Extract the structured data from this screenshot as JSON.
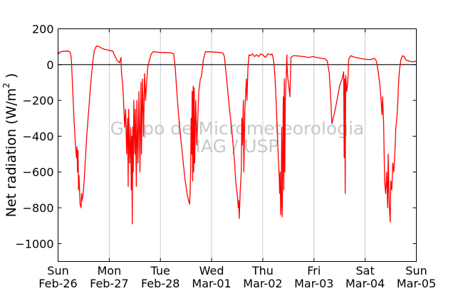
{
  "chart_data": {
    "type": "line",
    "ylabel_main": "Net radiation (W/m",
    "ylabel_sup": "2",
    "ylabel_close": " )",
    "ylim": [
      -1100,
      200
    ],
    "yticks": [
      200,
      0,
      -200,
      -400,
      -600,
      -800,
      -1000
    ],
    "ytick_labels": [
      "200",
      "0",
      "−200",
      "−400",
      "−600",
      "−800",
      "−1000"
    ],
    "xlim": [
      0,
      7
    ],
    "xticks": [
      {
        "day": "Sun",
        "date": "Feb-26"
      },
      {
        "day": "Mon",
        "date": "Feb-27"
      },
      {
        "day": "Tue",
        "date": "Feb-28"
      },
      {
        "day": "Wed",
        "date": "Mar-01"
      },
      {
        "day": "Thu",
        "date": "Mar-02"
      },
      {
        "day": "Fri",
        "date": "Mar-03"
      },
      {
        "day": "Sat",
        "date": "Mar-04"
      },
      {
        "day": "Sun",
        "date": "Mar-05"
      }
    ],
    "grid": "vertical",
    "zero_line": true,
    "watermark": [
      "Grupo de Micrometeorologia",
      "IAG / USP"
    ],
    "series": [
      {
        "color": "#ff0000",
        "points": [
          [
            0.0,
            75
          ],
          [
            0.01,
            60
          ],
          [
            0.03,
            68
          ],
          [
            0.06,
            72
          ],
          [
            0.12,
            75
          ],
          [
            0.2,
            76
          ],
          [
            0.24,
            68
          ],
          [
            0.26,
            30
          ],
          [
            0.28,
            -100
          ],
          [
            0.31,
            -300
          ],
          [
            0.34,
            -450
          ],
          [
            0.36,
            -520
          ],
          [
            0.37,
            -460
          ],
          [
            0.38,
            -600
          ],
          [
            0.39,
            -480
          ],
          [
            0.4,
            -700
          ],
          [
            0.41,
            -620
          ],
          [
            0.43,
            -780
          ],
          [
            0.45,
            -800
          ],
          [
            0.46,
            -720
          ],
          [
            0.47,
            -760
          ],
          [
            0.49,
            -720
          ],
          [
            0.51,
            -650
          ],
          [
            0.53,
            -550
          ],
          [
            0.56,
            -400
          ],
          [
            0.6,
            -250
          ],
          [
            0.64,
            -100
          ],
          [
            0.68,
            20
          ],
          [
            0.71,
            80
          ],
          [
            0.75,
            104
          ],
          [
            0.8,
            100
          ],
          [
            0.88,
            88
          ],
          [
            0.96,
            82
          ],
          [
            1.02,
            78
          ],
          [
            1.07,
            75
          ],
          [
            1.1,
            55
          ],
          [
            1.15,
            25
          ],
          [
            1.2,
            10
          ],
          [
            1.23,
            40
          ],
          [
            1.24,
            -50
          ],
          [
            1.26,
            -100
          ],
          [
            1.28,
            -200
          ],
          [
            1.3,
            -350
          ],
          [
            1.32,
            -250
          ],
          [
            1.34,
            -500
          ],
          [
            1.36,
            -300
          ],
          [
            1.37,
            -680
          ],
          [
            1.38,
            -250
          ],
          [
            1.4,
            -550
          ],
          [
            1.42,
            -350
          ],
          [
            1.43,
            -700
          ],
          [
            1.44,
            -400
          ],
          [
            1.45,
            -890
          ],
          [
            1.46,
            -350
          ],
          [
            1.47,
            -600
          ],
          [
            1.48,
            -200
          ],
          [
            1.5,
            -500
          ],
          [
            1.51,
            -250
          ],
          [
            1.53,
            -680
          ],
          [
            1.54,
            -200
          ],
          [
            1.56,
            -550
          ],
          [
            1.58,
            -150
          ],
          [
            1.6,
            -600
          ],
          [
            1.62,
            -100
          ],
          [
            1.63,
            -500
          ],
          [
            1.65,
            -80
          ],
          [
            1.67,
            -400
          ],
          [
            1.69,
            -50
          ],
          [
            1.71,
            -200
          ],
          [
            1.73,
            -100
          ],
          [
            1.75,
            -20
          ],
          [
            1.78,
            20
          ],
          [
            1.82,
            60
          ],
          [
            1.86,
            72
          ],
          [
            1.92,
            70
          ],
          [
            2.0,
            68
          ],
          [
            2.1,
            67
          ],
          [
            2.2,
            66
          ],
          [
            2.26,
            60
          ],
          [
            2.29,
            -20
          ],
          [
            2.32,
            -150
          ],
          [
            2.36,
            -300
          ],
          [
            2.4,
            -420
          ],
          [
            2.44,
            -530
          ],
          [
            2.48,
            -640
          ],
          [
            2.52,
            -720
          ],
          [
            2.55,
            -760
          ],
          [
            2.57,
            -780
          ],
          [
            2.58,
            -720
          ],
          [
            2.59,
            -600
          ],
          [
            2.6,
            -300
          ],
          [
            2.61,
            -500
          ],
          [
            2.62,
            -150
          ],
          [
            2.63,
            -650
          ],
          [
            2.64,
            -120
          ],
          [
            2.65,
            -600
          ],
          [
            2.66,
            -130
          ],
          [
            2.67,
            -550
          ],
          [
            2.69,
            -200
          ],
          [
            2.71,
            -450
          ],
          [
            2.73,
            -300
          ],
          [
            2.75,
            -150
          ],
          [
            2.78,
            -80
          ],
          [
            2.8,
            -70
          ],
          [
            2.84,
            30
          ],
          [
            2.88,
            72
          ],
          [
            2.95,
            72
          ],
          [
            3.05,
            70
          ],
          [
            3.15,
            68
          ],
          [
            3.22,
            65
          ],
          [
            3.25,
            45
          ],
          [
            3.3,
            -100
          ],
          [
            3.35,
            -250
          ],
          [
            3.39,
            -350
          ],
          [
            3.42,
            -450
          ],
          [
            3.45,
            -550
          ],
          [
            3.47,
            -650
          ],
          [
            3.49,
            -700
          ],
          [
            3.51,
            -750
          ],
          [
            3.52,
            -800
          ],
          [
            3.53,
            -760
          ],
          [
            3.54,
            -860
          ],
          [
            3.55,
            -780
          ],
          [
            3.56,
            -700
          ],
          [
            3.58,
            -600
          ],
          [
            3.59,
            -300
          ],
          [
            3.6,
            -450
          ],
          [
            3.62,
            -200
          ],
          [
            3.63,
            -600
          ],
          [
            3.65,
            -250
          ],
          [
            3.68,
            -80
          ],
          [
            3.69,
            -200
          ],
          [
            3.71,
            -20
          ],
          [
            3.73,
            55
          ],
          [
            3.76,
            50
          ],
          [
            3.8,
            60
          ],
          [
            3.84,
            45
          ],
          [
            3.88,
            55
          ],
          [
            3.92,
            45
          ],
          [
            3.96,
            60
          ],
          [
            4.0,
            55
          ],
          [
            4.05,
            40
          ],
          [
            4.1,
            60
          ],
          [
            4.16,
            55
          ],
          [
            4.18,
            60
          ],
          [
            4.2,
            40
          ],
          [
            4.22,
            0
          ],
          [
            4.24,
            -80
          ],
          [
            4.26,
            -200
          ],
          [
            4.28,
            -350
          ],
          [
            4.3,
            -500
          ],
          [
            4.32,
            -620
          ],
          [
            4.33,
            -720
          ],
          [
            4.34,
            -600
          ],
          [
            4.35,
            -840
          ],
          [
            4.36,
            -780
          ],
          [
            4.37,
            -350
          ],
          [
            4.38,
            -850
          ],
          [
            4.39,
            -500
          ],
          [
            4.4,
            -180
          ],
          [
            4.41,
            -700
          ],
          [
            4.42,
            -80
          ],
          [
            4.43,
            -600
          ],
          [
            4.44,
            -200
          ],
          [
            4.46,
            -50
          ],
          [
            4.47,
            55
          ],
          [
            4.48,
            -50
          ],
          [
            4.5,
            -100
          ],
          [
            4.52,
            -150
          ],
          [
            4.53,
            -180
          ],
          [
            4.55,
            40
          ],
          [
            4.6,
            50
          ],
          [
            4.7,
            48
          ],
          [
            4.8,
            45
          ],
          [
            4.9,
            40
          ],
          [
            4.98,
            45
          ],
          [
            5.05,
            40
          ],
          [
            5.15,
            35
          ],
          [
            5.22,
            32
          ],
          [
            5.26,
            20
          ],
          [
            5.3,
            -50
          ],
          [
            5.33,
            -200
          ],
          [
            5.35,
            -330
          ],
          [
            5.4,
            -270
          ],
          [
            5.45,
            -200
          ],
          [
            5.5,
            -120
          ],
          [
            5.55,
            -80
          ],
          [
            5.58,
            -40
          ],
          [
            5.59,
            -520
          ],
          [
            5.6,
            -80
          ],
          [
            5.61,
            -720
          ],
          [
            5.62,
            -60
          ],
          [
            5.64,
            -150
          ],
          [
            5.66,
            -100
          ],
          [
            5.68,
            30
          ],
          [
            5.72,
            50
          ],
          [
            5.8,
            40
          ],
          [
            5.9,
            35
          ],
          [
            6.0,
            30
          ],
          [
            6.1,
            28
          ],
          [
            6.18,
            35
          ],
          [
            6.22,
            20
          ],
          [
            6.26,
            -50
          ],
          [
            6.29,
            -120
          ],
          [
            6.31,
            -200
          ],
          [
            6.33,
            -280
          ],
          [
            6.34,
            -180
          ],
          [
            6.36,
            -320
          ],
          [
            6.38,
            -650
          ],
          [
            6.4,
            -720
          ],
          [
            6.42,
            -600
          ],
          [
            6.44,
            -800
          ],
          [
            6.45,
            -500
          ],
          [
            6.47,
            -780
          ],
          [
            6.49,
            -880
          ],
          [
            6.5,
            -650
          ],
          [
            6.52,
            -700
          ],
          [
            6.54,
            -550
          ],
          [
            6.56,
            -600
          ],
          [
            6.58,
            -500
          ],
          [
            6.6,
            -350
          ],
          [
            6.62,
            -300
          ],
          [
            6.64,
            -200
          ],
          [
            6.65,
            -120
          ],
          [
            6.67,
            -30
          ],
          [
            6.7,
            30
          ],
          [
            6.73,
            50
          ],
          [
            6.76,
            45
          ],
          [
            6.8,
            25
          ],
          [
            6.86,
            20
          ],
          [
            6.93,
            15
          ],
          [
            7.0,
            20
          ]
        ]
      }
    ]
  }
}
